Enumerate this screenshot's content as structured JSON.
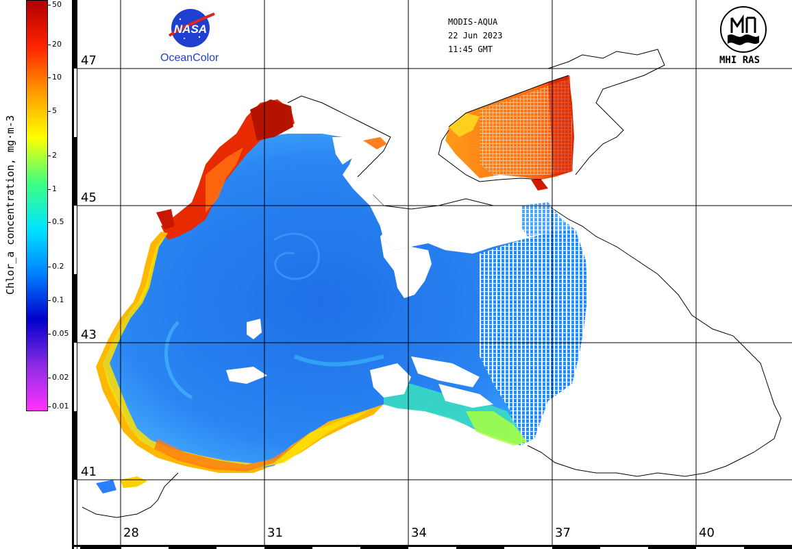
{
  "header": {
    "sensor": "MODIS-AQUA",
    "date": "22 Jun 2023",
    "time": "11:45 GMT"
  },
  "logos": {
    "nasa_wordmark": "NASA",
    "oceancolor": "OceanColor",
    "mhi": "MHI RAS"
  },
  "colorbar": {
    "title": "Chlor_a concentration, mg·m-3",
    "ticks": [
      "50",
      "20",
      "10",
      "5",
      "2",
      "1",
      "0.5",
      "0.2",
      "0.1",
      "0.05",
      "0.02",
      "0.01"
    ],
    "tick_values": [
      50,
      20,
      10,
      5,
      2,
      1,
      0.5,
      0.2,
      0.1,
      0.05,
      0.02,
      0.01
    ],
    "range": [
      0.01,
      50
    ],
    "scale": "log",
    "colors": [
      "#ff33ff",
      "#8a2be2",
      "#0000cd",
      "#0080ff",
      "#00e5ff",
      "#40ff80",
      "#ffff00",
      "#ff9900",
      "#ff2200",
      "#b00000"
    ]
  },
  "grid": {
    "latitudes": [
      "47",
      "45",
      "43",
      "41"
    ],
    "longitudes": [
      "28",
      "31",
      "34",
      "37",
      "40"
    ]
  },
  "colors": {
    "water_low": "#1a66e0",
    "water_mid": "#2b8cf0",
    "coast_high": "#ff3300",
    "land": "#ffffff",
    "coastline": "#000000"
  }
}
